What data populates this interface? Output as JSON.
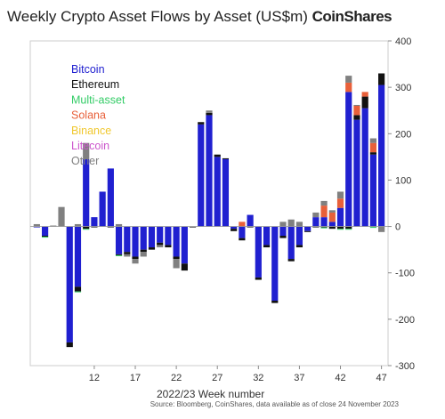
{
  "header": {
    "title": "Weekly Crypto Asset Flows by Asset (US$m)",
    "brand": "CoinShares"
  },
  "footer": {
    "source": "Source: Bloomberg, CoinShares, data available as of close 24 November 2023"
  },
  "chart_data": {
    "type": "bar",
    "stacked": true,
    "title": "Weekly Crypto Asset Flows by Asset (US$m)",
    "xlabel": "2022/23 Week number",
    "ylabel": "",
    "ylim": [
      -300,
      400
    ],
    "y_ticks": [
      400,
      300,
      200,
      100,
      0,
      -100,
      -200,
      -300
    ],
    "x_ticks": [
      12,
      17,
      22,
      27,
      32,
      37,
      42,
      47
    ],
    "y_axis_position": "right",
    "grid": false,
    "legend_position": "top-left",
    "weeks": [
      5,
      6,
      7,
      8,
      9,
      10,
      11,
      12,
      13,
      14,
      15,
      16,
      17,
      18,
      19,
      20,
      21,
      22,
      23,
      24,
      25,
      26,
      27,
      28,
      29,
      30,
      31,
      32,
      33,
      34,
      35,
      36,
      37,
      38,
      39,
      40,
      41,
      42,
      43,
      44,
      45,
      46,
      47
    ],
    "series": [
      {
        "name": "Bitcoin",
        "color": "#2020d0",
        "values": [
          -2,
          -20,
          0,
          0,
          -250,
          -130,
          145,
          20,
          75,
          125,
          -60,
          -55,
          -65,
          -50,
          -45,
          -35,
          -40,
          -65,
          -80,
          0,
          220,
          240,
          150,
          145,
          -5,
          -25,
          25,
          -110,
          -40,
          -160,
          -20,
          -70,
          -40,
          -10,
          20,
          20,
          10,
          40,
          290,
          230,
          255,
          155,
          305
        ]
      },
      {
        "name": "Ethereum",
        "color": "#111111",
        "values": [
          0,
          -2,
          0,
          0,
          -10,
          -10,
          -5,
          -2,
          0,
          -2,
          -2,
          -5,
          -5,
          -5,
          -5,
          -5,
          -5,
          -5,
          -15,
          -2,
          5,
          5,
          5,
          2,
          -5,
          -5,
          -2,
          -5,
          -5,
          -5,
          -5,
          -5,
          -5,
          -2,
          -2,
          -2,
          -5,
          -5,
          -5,
          10,
          25,
          5,
          25
        ]
      },
      {
        "name": "Multi-asset",
        "color": "#33cc66",
        "values": [
          0,
          -2,
          0,
          0,
          0,
          -2,
          -2,
          0,
          0,
          0,
          -2,
          0,
          0,
          0,
          0,
          0,
          0,
          0,
          0,
          0,
          0,
          0,
          0,
          0,
          0,
          0,
          0,
          0,
          0,
          0,
          0,
          0,
          0,
          0,
          0,
          -2,
          0,
          -2,
          -2,
          0,
          0,
          -3,
          0
        ]
      },
      {
        "name": "Solana",
        "color": "#e8603a",
        "values": [
          0,
          0,
          0,
          0,
          0,
          0,
          0,
          0,
          0,
          0,
          0,
          0,
          0,
          0,
          0,
          0,
          0,
          0,
          0,
          0,
          0,
          0,
          0,
          0,
          0,
          10,
          0,
          0,
          0,
          0,
          0,
          0,
          0,
          0,
          0,
          25,
          20,
          20,
          20,
          20,
          10,
          20,
          0
        ]
      },
      {
        "name": "Binance",
        "color": "#f0c830",
        "values": [
          0,
          0,
          0,
          0,
          0,
          0,
          0,
          0,
          0,
          0,
          0,
          0,
          0,
          0,
          0,
          0,
          0,
          0,
          0,
          0,
          0,
          0,
          0,
          0,
          0,
          0,
          0,
          0,
          0,
          0,
          0,
          0,
          0,
          0,
          0,
          0,
          0,
          0,
          0,
          0,
          0,
          0,
          0
        ]
      },
      {
        "name": "Litecoin",
        "color": "#cc55cc",
        "values": [
          0,
          0,
          0,
          0,
          0,
          0,
          0,
          0,
          0,
          0,
          0,
          0,
          0,
          0,
          0,
          0,
          0,
          0,
          0,
          0,
          0,
          0,
          0,
          0,
          0,
          0,
          0,
          0,
          0,
          0,
          0,
          0,
          0,
          0,
          0,
          0,
          0,
          0,
          0,
          0,
          0,
          0,
          0
        ]
      },
      {
        "name": "Other",
        "color": "#808080",
        "values": [
          5,
          0,
          2,
          42,
          0,
          5,
          35,
          0,
          0,
          0,
          5,
          -5,
          -10,
          -10,
          0,
          -5,
          0,
          -20,
          0,
          0,
          0,
          5,
          0,
          0,
          0,
          0,
          0,
          0,
          0,
          0,
          10,
          15,
          10,
          0,
          10,
          10,
          5,
          15,
          15,
          2,
          0,
          10,
          -12
        ]
      }
    ]
  }
}
